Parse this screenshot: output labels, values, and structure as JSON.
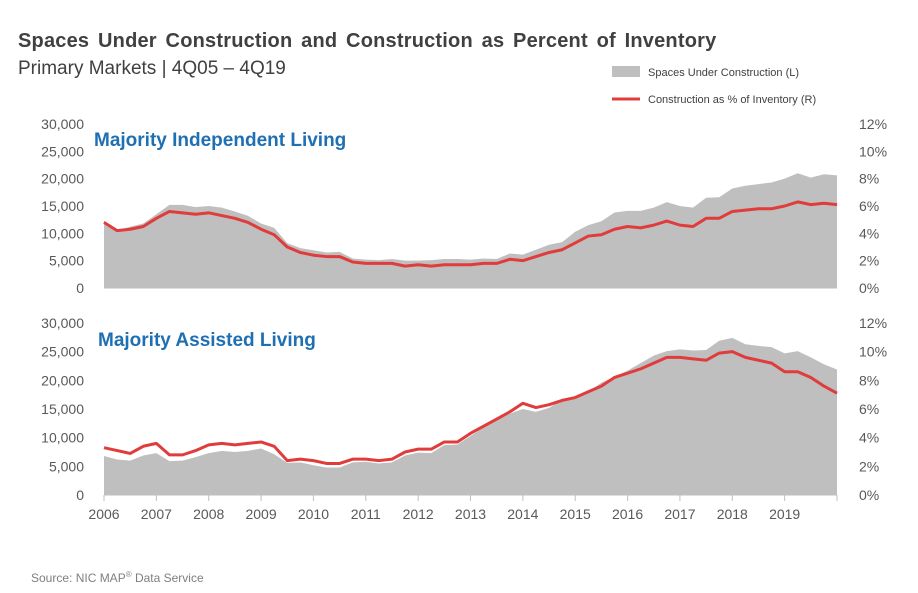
{
  "title": "Spaces Under Construction  and Construction  as Percent  of Inventory",
  "subtitle": "Primary Markets | 4Q05 – 4Q19",
  "source": {
    "text": "Source: NIC MAP",
    "reg": "®",
    "suffix": " Data Service"
  },
  "colors": {
    "area": "#bfbfbf",
    "line": "#e03c3c",
    "panel_title": "#1f6fb3",
    "text": "#404040"
  },
  "chart_data": {
    "type": "area",
    "legend": [
      {
        "name": "Spaces Under Construction (L)",
        "kind": "area"
      },
      {
        "name": "Construction as % of Inventory (R)",
        "kind": "line"
      }
    ],
    "x_tick_labels": [
      "2006",
      "2007",
      "2008",
      "2009",
      "2010",
      "2011",
      "2012",
      "2013",
      "2014",
      "2015",
      "2016",
      "2017",
      "2018",
      "2019"
    ],
    "panels": [
      {
        "title": "Majority  Independent  Living",
        "left_axis": {
          "range": [
            0,
            30000
          ],
          "ticks": [
            "0",
            "5,000",
            "10,000",
            "15,000",
            "20,000",
            "25,000",
            "30,000"
          ]
        },
        "right_axis": {
          "range": [
            0,
            12
          ],
          "ticks": [
            "0%",
            "2%",
            "4%",
            "6%",
            "8%",
            "10%",
            "12%"
          ]
        },
        "spaces": [
          12300,
          10600,
          11200,
          11800,
          13500,
          15200,
          15200,
          14800,
          15000,
          14700,
          14000,
          13200,
          11800,
          11000,
          8200,
          7300,
          6900,
          6500,
          6600,
          5400,
          5200,
          5100,
          5300,
          5000,
          5000,
          5100,
          5300,
          5300,
          5200,
          5400,
          5300,
          6300,
          6100,
          7000,
          7900,
          8400,
          10300,
          11500,
          12200,
          13800,
          14100,
          14100,
          14700,
          15700,
          15000,
          14700,
          16500,
          16600,
          18200,
          18700,
          19000,
          19300,
          20000,
          21000,
          20200,
          20800,
          20600
        ],
        "pct": [
          4.8,
          4.2,
          4.3,
          4.5,
          5.1,
          5.6,
          5.5,
          5.4,
          5.5,
          5.3,
          5.1,
          4.8,
          4.3,
          3.9,
          3.0,
          2.6,
          2.4,
          2.3,
          2.3,
          1.9,
          1.8,
          1.8,
          1.8,
          1.6,
          1.7,
          1.6,
          1.7,
          1.7,
          1.7,
          1.8,
          1.8,
          2.1,
          2.0,
          2.3,
          2.6,
          2.8,
          3.3,
          3.8,
          3.9,
          4.3,
          4.5,
          4.4,
          4.6,
          4.9,
          4.6,
          4.5,
          5.1,
          5.1,
          5.6,
          5.7,
          5.8,
          5.8,
          6.0,
          6.3,
          6.1,
          6.2,
          6.1
        ]
      },
      {
        "title": "Majority  Assisted  Living",
        "left_axis": {
          "range": [
            0,
            30000
          ],
          "ticks": [
            "0",
            "5,000",
            "10,000",
            "15,000",
            "20,000",
            "25,000",
            "30,000"
          ]
        },
        "right_axis": {
          "range": [
            0,
            12
          ],
          "ticks": [
            "0%",
            "2%",
            "4%",
            "6%",
            "8%",
            "10%",
            "12%"
          ]
        },
        "spaces": [
          6800,
          6200,
          6000,
          6900,
          7300,
          5900,
          6000,
          6600,
          7300,
          7700,
          7500,
          7700,
          8100,
          7100,
          5600,
          5700,
          5200,
          4800,
          4800,
          5700,
          5800,
          5500,
          5700,
          6900,
          7400,
          7300,
          8700,
          8800,
          10300,
          11800,
          13100,
          14200,
          15000,
          14500,
          15200,
          16600,
          17200,
          18000,
          19600,
          20600,
          21700,
          23000,
          24300,
          25100,
          25400,
          25200,
          25300,
          26900,
          27400,
          26300,
          26000,
          25800,
          24700,
          25100,
          24000,
          22800,
          21900
        ],
        "pct": [
          3.3,
          3.1,
          2.9,
          3.4,
          3.6,
          2.8,
          2.8,
          3.1,
          3.5,
          3.6,
          3.5,
          3.6,
          3.7,
          3.4,
          2.4,
          2.5,
          2.4,
          2.2,
          2.2,
          2.5,
          2.5,
          2.4,
          2.5,
          3.0,
          3.2,
          3.2,
          3.7,
          3.7,
          4.3,
          4.8,
          5.3,
          5.8,
          6.4,
          6.1,
          6.3,
          6.6,
          6.8,
          7.2,
          7.6,
          8.2,
          8.5,
          8.8,
          9.2,
          9.6,
          9.6,
          9.5,
          9.4,
          9.9,
          10.0,
          9.6,
          9.4,
          9.2,
          8.6,
          8.6,
          8.2,
          7.6,
          7.1
        ]
      }
    ]
  }
}
